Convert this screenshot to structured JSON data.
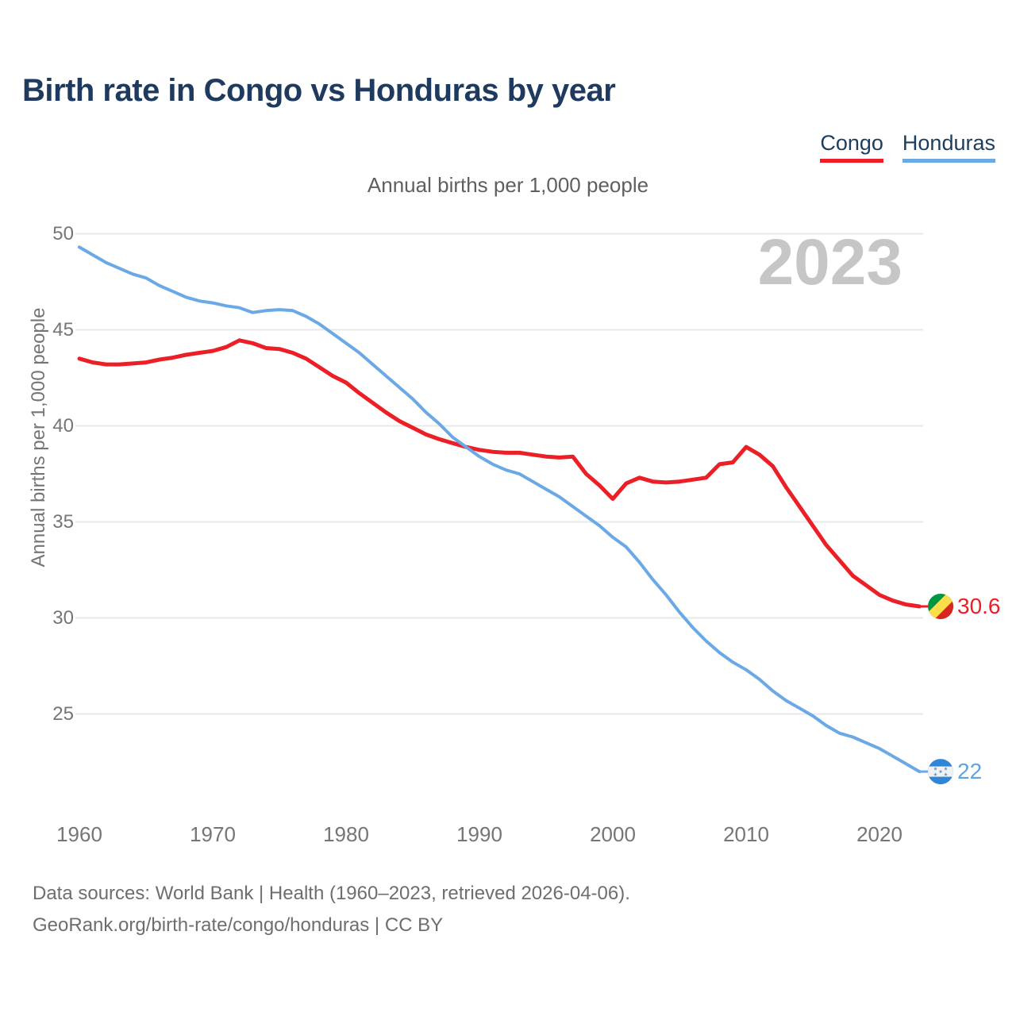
{
  "header": {
    "title": "Birth rate in Congo vs Honduras by year"
  },
  "legend": {
    "items": [
      {
        "label": "Congo",
        "color": "#ed1f26"
      },
      {
        "label": "Honduras",
        "color": "#6aa8e6"
      }
    ]
  },
  "chart": {
    "subtitle": "Annual births per 1,000 people",
    "watermark": "2023",
    "y_axis_title": "Annual births per 1,000 people",
    "icons": {
      "congo_flag": "congo-flag-circle-icon",
      "honduras_flag": "honduras-flag-circle-icon"
    }
  },
  "footer": {
    "line1": "Data sources: World Bank | Health (1960–2023, retrieved 2026-04-06).",
    "line2": "GeoRank.org/birth-rate/congo/honduras | CC BY"
  },
  "chart_data": {
    "type": "line",
    "title": "Birth rate in Congo vs Honduras by year",
    "subtitle": "Annual births per 1,000 people",
    "xlabel": "",
    "ylabel": "Annual births per 1,000 people",
    "x_start": 1960,
    "x_end": 2023,
    "xlim": [
      1960,
      2023
    ],
    "ylim": [
      22,
      50
    ],
    "x_ticks": [
      1960,
      1970,
      1980,
      1990,
      2000,
      2010,
      2020
    ],
    "y_ticks": [
      25,
      30,
      35,
      40,
      45,
      50
    ],
    "grid": "horizontal",
    "legend_position": "top-right",
    "watermark": "2023",
    "series": [
      {
        "name": "Congo",
        "color": "#ed1f26",
        "final_label": "30.6",
        "values": [
          43.5,
          43.3,
          43.2,
          43.2,
          43.25,
          43.3,
          43.45,
          43.55,
          43.7,
          43.8,
          43.9,
          44.1,
          44.45,
          44.3,
          44.05,
          44.0,
          43.8,
          43.5,
          43.05,
          42.6,
          42.25,
          41.7,
          41.2,
          40.7,
          40.25,
          39.9,
          39.55,
          39.3,
          39.1,
          38.9,
          38.75,
          38.65,
          38.6,
          38.6,
          38.5,
          38.4,
          38.35,
          38.4,
          37.5,
          36.9,
          36.2,
          37.0,
          37.3,
          37.1,
          37.05,
          37.1,
          37.2,
          37.3,
          38.0,
          38.1,
          38.9,
          38.5,
          37.9,
          36.8,
          35.8,
          34.8,
          33.8,
          33.0,
          32.2,
          31.7,
          31.2,
          30.9,
          30.7,
          30.6
        ]
      },
      {
        "name": "Honduras",
        "color": "#6aa8e6",
        "final_label": "22",
        "values": [
          49.3,
          48.9,
          48.5,
          48.2,
          47.9,
          47.7,
          47.3,
          47.0,
          46.7,
          46.5,
          46.4,
          46.25,
          46.15,
          45.9,
          46.0,
          46.05,
          46.0,
          45.7,
          45.3,
          44.8,
          44.3,
          43.8,
          43.2,
          42.6,
          42.0,
          41.4,
          40.7,
          40.1,
          39.4,
          38.9,
          38.4,
          38.0,
          37.7,
          37.5,
          37.1,
          36.7,
          36.3,
          35.8,
          35.3,
          34.8,
          34.2,
          33.7,
          32.9,
          32.0,
          31.2,
          30.3,
          29.5,
          28.8,
          28.2,
          27.7,
          27.3,
          26.8,
          26.2,
          25.7,
          25.3,
          24.9,
          24.4,
          24.0,
          23.8,
          23.5,
          23.2,
          22.8,
          22.4,
          22.0
        ]
      }
    ]
  }
}
